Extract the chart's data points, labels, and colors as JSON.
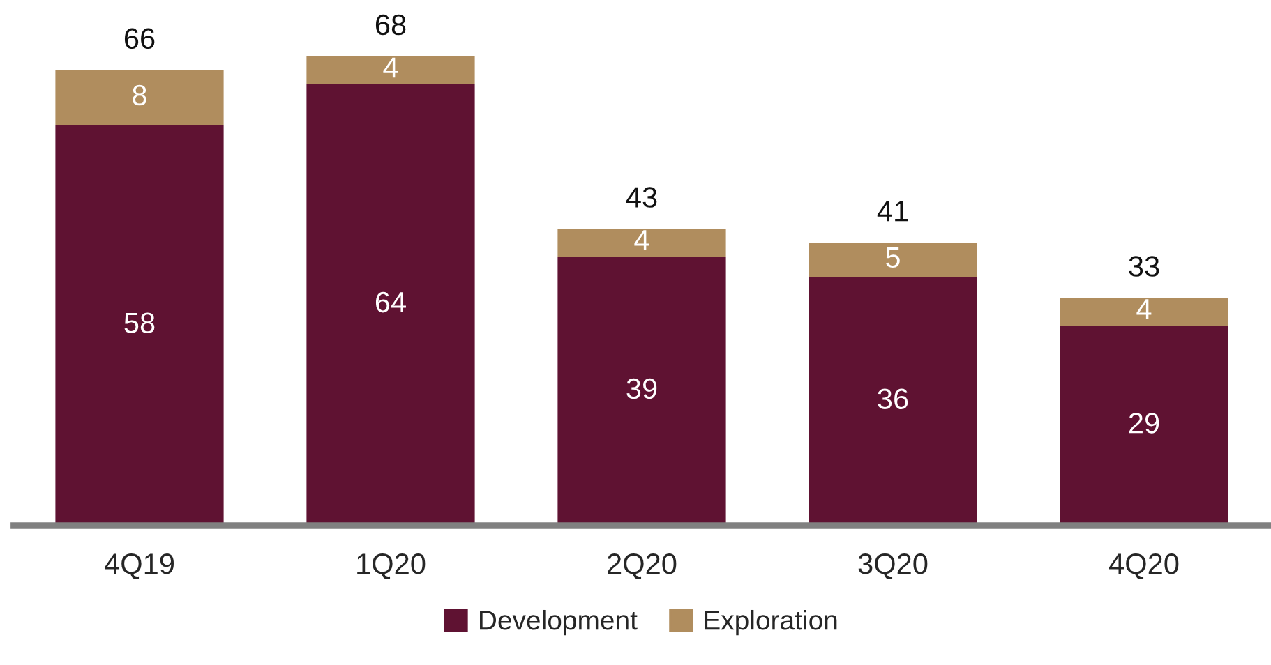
{
  "chart_data": {
    "type": "bar",
    "stacked": true,
    "categories": [
      "4Q19",
      "1Q20",
      "2Q20",
      "3Q20",
      "4Q20"
    ],
    "series": [
      {
        "name": "Development",
        "color": "#5f1232",
        "values": [
          58,
          64,
          39,
          36,
          29
        ]
      },
      {
        "name": "Exploration",
        "color": "#b08d5e",
        "values": [
          8,
          4,
          4,
          5,
          4
        ]
      }
    ],
    "data_labels": true,
    "totals": [
      "66",
      "68",
      "43",
      "41",
      "33"
    ],
    "tick_labels": "x",
    "grid": false,
    "legend": "bottom"
  }
}
